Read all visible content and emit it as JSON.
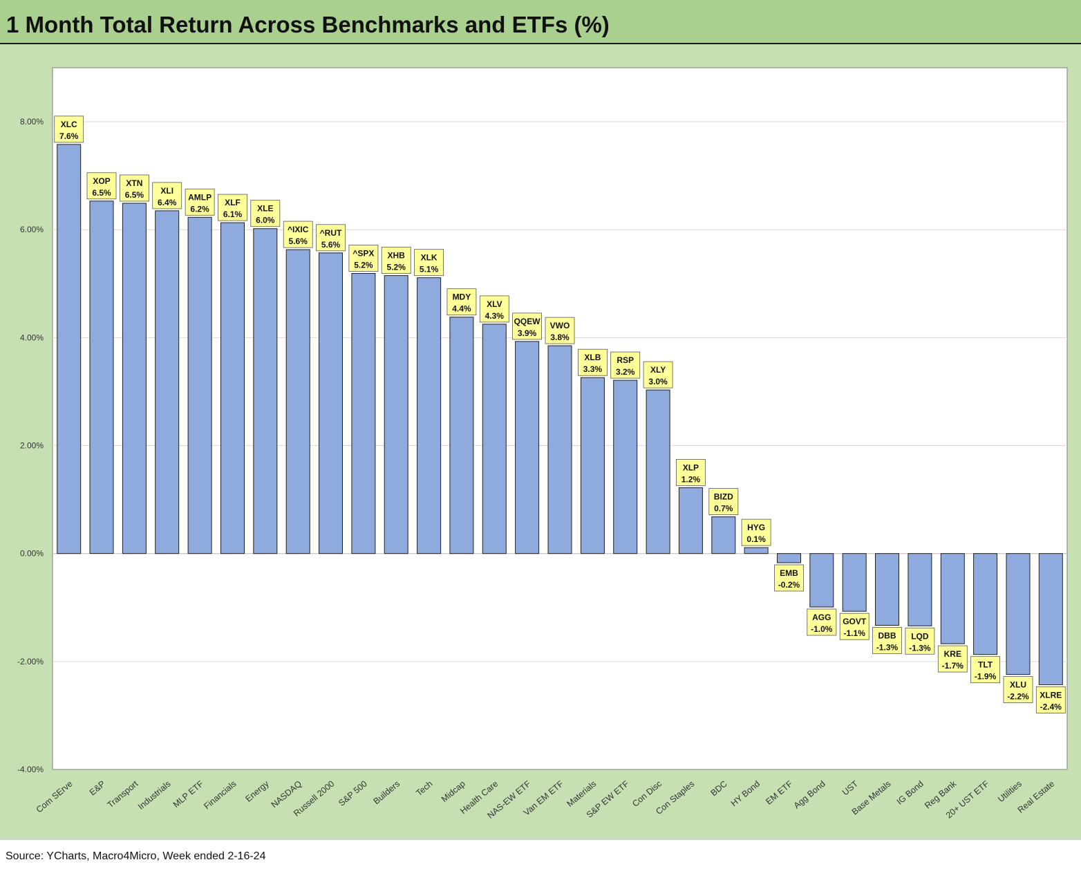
{
  "title": "1 Month Total Return Across Benchmarks and ETFs (%)",
  "source": "Source: YCharts, Macro4Micro, Week ended 2-16-24",
  "colors": {
    "bar_fill": "#8faadc",
    "frame_bg": "#c6e0b4",
    "title_bg": "#a9d08e",
    "label_box": "#ffff99"
  },
  "chart_data": {
    "type": "bar",
    "title": "1 Month Total Return Across Benchmarks and ETFs (%)",
    "xlabel": "",
    "ylabel": "",
    "ylim": [
      -4,
      9
    ],
    "y_ticks": [
      {
        "value": 8,
        "label": "8.00%"
      },
      {
        "value": 6,
        "label": "6.00%"
      },
      {
        "value": 4,
        "label": "4.00%"
      },
      {
        "value": 2,
        "label": "2.00%"
      },
      {
        "value": 0,
        "label": "0.00%"
      },
      {
        "value": -2,
        "label": "-2.00%"
      },
      {
        "value": -4,
        "label": "-4.00%"
      }
    ],
    "grid": true,
    "legend": "none",
    "categories": [
      "Com SErve",
      "E&P",
      "Transport",
      "Industrials",
      "MLP ETF",
      "Financials",
      "Energy",
      "NASDAQ",
      "Russell 2000",
      "S&P 500",
      "Builders",
      "Tech",
      "Midcap",
      "Health Care",
      "NAS-EW ETF",
      "Van EM ETF",
      "Materials",
      "S&P EW ETF",
      "Con Disc",
      "Con Staples",
      "BDC",
      "HY Bond",
      "EM ETF",
      "Agg Bond",
      "UST",
      "Base Metals",
      "IG Bond",
      "Reg Bank",
      "20+ UST ETF",
      "Utilities",
      "Real Estate"
    ],
    "tickers": [
      "XLC",
      "XOP",
      "XTN",
      "XLI",
      "AMLP",
      "XLF",
      "XLE",
      "^IXIC",
      "^RUT",
      "^SPX",
      "XHB",
      "XLK",
      "MDY",
      "XLV",
      "QQEW",
      "VWO",
      "XLB",
      "RSP",
      "XLY",
      "XLP",
      "BIZD",
      "HYG",
      "EMB",
      "AGG",
      "GOVT",
      "DBB",
      "LQD",
      "KRE",
      "TLT",
      "XLU",
      "XLRE"
    ],
    "data_labels": [
      "7.6%",
      "6.5%",
      "6.5%",
      "6.4%",
      "6.2%",
      "6.1%",
      "6.0%",
      "5.6%",
      "5.6%",
      "5.2%",
      "5.2%",
      "5.1%",
      "4.4%",
      "4.3%",
      "3.9%",
      "3.8%",
      "3.3%",
      "3.2%",
      "3.0%",
      "1.2%",
      "0.7%",
      "0.1%",
      "-0.2%",
      "-1.0%",
      "-1.1%",
      "-1.3%",
      "-1.3%",
      "-1.7%",
      "-1.9%",
      "-2.2%",
      "-2.4%"
    ],
    "values": [
      7.58,
      6.53,
      6.49,
      6.35,
      6.23,
      6.13,
      6.02,
      5.63,
      5.57,
      5.19,
      5.15,
      5.11,
      4.38,
      4.25,
      3.93,
      3.85,
      3.26,
      3.21,
      3.03,
      1.22,
      0.68,
      0.11,
      -0.17,
      -0.99,
      -1.07,
      -1.33,
      -1.34,
      -1.67,
      -1.87,
      -2.24,
      -2.43
    ]
  }
}
